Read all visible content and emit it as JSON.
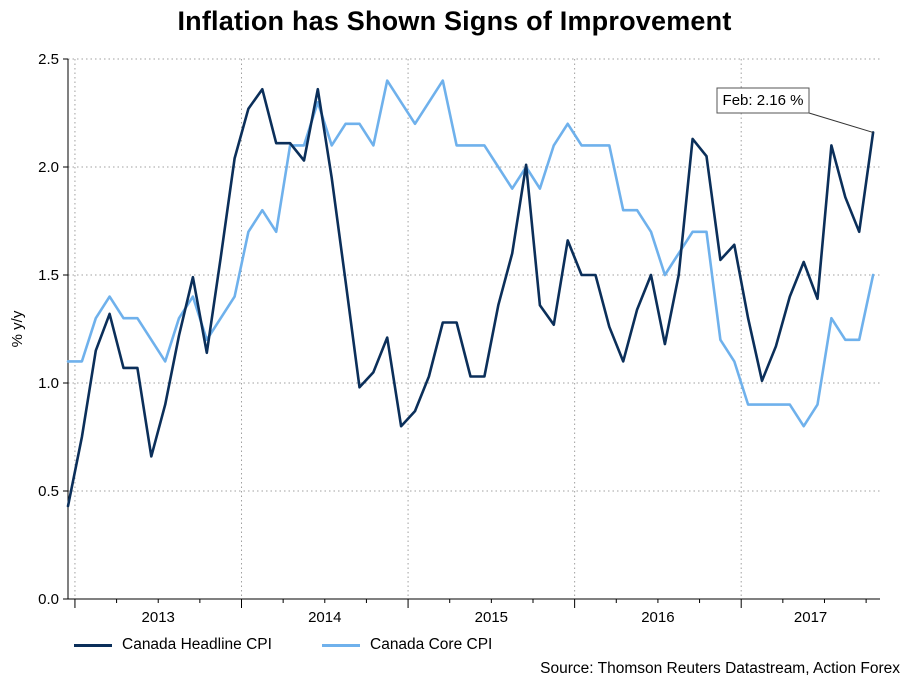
{
  "chart_data": {
    "type": "line",
    "title": "Inflation has Shown Signs of Improvement",
    "ylabel": "% y/y",
    "xlabel": "",
    "ylim": [
      0,
      2.5
    ],
    "y_ticks": [
      "0.0",
      "0.5",
      "1.0",
      "1.5",
      "2.0",
      "2.5"
    ],
    "y_tick_values": [
      0,
      0.5,
      1.0,
      1.5,
      2.0,
      2.5
    ],
    "year_labels": [
      "2013",
      "2014",
      "2015",
      "2016",
      "2017"
    ],
    "x_start": "2012-12",
    "x_end": "2017-02",
    "grid": true,
    "series": [
      {
        "name": "Canada Headline CPI",
        "color": "#0b2f5a",
        "values": [
          0.43,
          0.75,
          1.15,
          1.32,
          1.07,
          1.07,
          0.66,
          0.9,
          1.22,
          1.49,
          1.14,
          1.58,
          2.04,
          2.27,
          2.36,
          2.11,
          2.11,
          2.03,
          2.36,
          1.95,
          1.47,
          0.98,
          1.05,
          1.21,
          0.8,
          0.87,
          1.03,
          1.28,
          1.28,
          1.03,
          1.03,
          1.36,
          1.6,
          2.01,
          1.36,
          1.27,
          1.66,
          1.5,
          1.5,
          1.26,
          1.1,
          1.34,
          1.5,
          1.18,
          1.5,
          2.13,
          2.05,
          1.57,
          1.64,
          1.3,
          1.01,
          1.17,
          1.4,
          1.56,
          1.39,
          2.1,
          1.86,
          1.7,
          2.16
        ]
      },
      {
        "name": "Canada Core CPI",
        "color": "#6fb1ec",
        "values": [
          1.1,
          1.1,
          1.3,
          1.4,
          1.3,
          1.3,
          1.2,
          1.1,
          1.3,
          1.4,
          1.2,
          1.3,
          1.4,
          1.7,
          1.8,
          1.7,
          2.1,
          2.1,
          2.3,
          2.1,
          2.2,
          2.2,
          2.1,
          2.4,
          2.3,
          2.2,
          2.3,
          2.4,
          2.1,
          2.1,
          2.1,
          2.0,
          1.9,
          2.0,
          1.9,
          2.1,
          2.2,
          2.1,
          2.1,
          2.1,
          1.8,
          1.8,
          1.7,
          1.5,
          1.6,
          1.7,
          1.7,
          1.2,
          1.1,
          0.9,
          0.9,
          0.9,
          0.9,
          0.8,
          0.9,
          1.3,
          1.2,
          1.2,
          1.5
        ]
      }
    ],
    "annotation": {
      "text": "Feb: 2.16 %",
      "series": "Canada Headline CPI",
      "point_index": 58,
      "value": 2.16
    },
    "legend": [
      {
        "label": "Canada Headline CPI",
        "color": "#0b2f5a"
      },
      {
        "label": "Canada Core CPI",
        "color": "#6fb1ec"
      }
    ]
  },
  "source_note": "Source: Thomson Reuters Datastream, Action Forex"
}
